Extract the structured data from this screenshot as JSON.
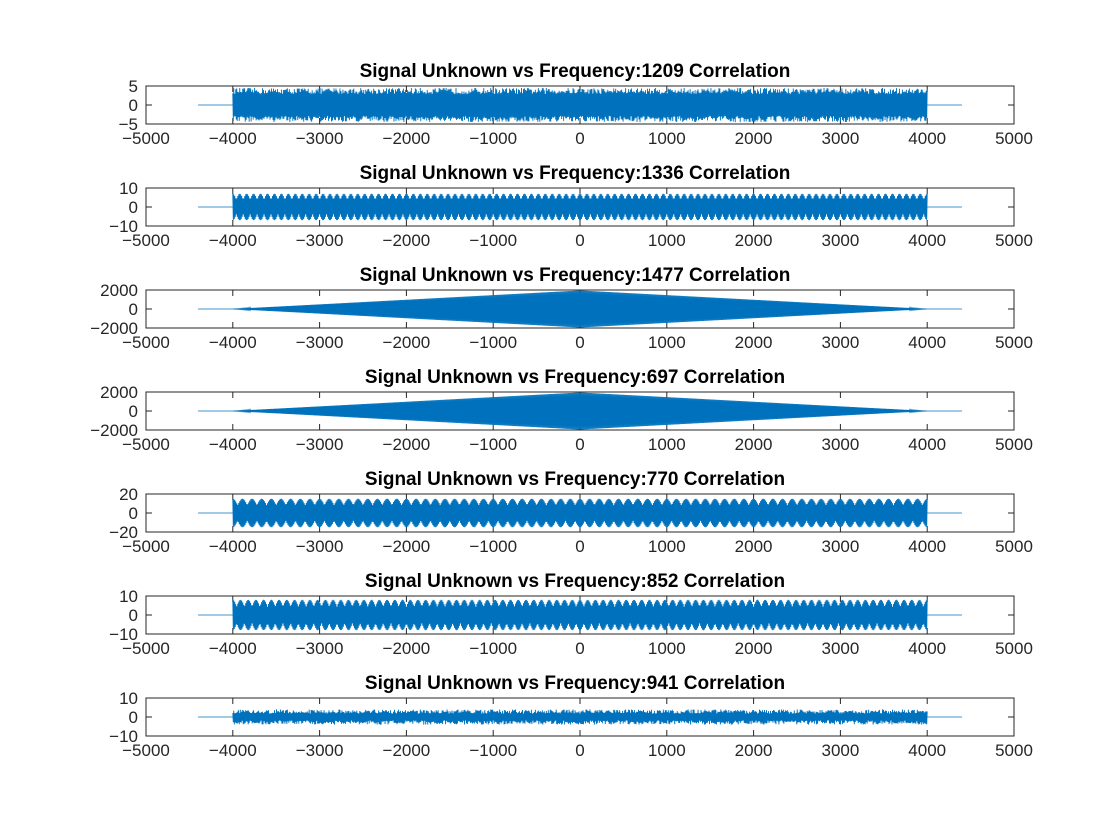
{
  "chart_data": [
    {
      "type": "line",
      "title": "Signal Unknown vs Frequency:1209 Correlation",
      "xlim": [
        -5000,
        5000
      ],
      "xticks": [
        -5000,
        -4000,
        -3000,
        -2000,
        -1000,
        0,
        1000,
        2000,
        3000,
        4000,
        5000
      ],
      "ylim": [
        -5,
        5
      ],
      "yticks": [
        5,
        0,
        -5
      ],
      "series": [
        {
          "color": "#0072BD",
          "envelope": "constant",
          "x_range": [
            -4400,
            4400
          ],
          "signal_range": [
            -4000,
            4000
          ],
          "amplitude": 4.5,
          "beats": 0
        }
      ]
    },
    {
      "type": "line",
      "title": "Signal Unknown vs Frequency:1336 Correlation",
      "xlim": [
        -5000,
        5000
      ],
      "xticks": [
        -5000,
        -4000,
        -3000,
        -2000,
        -1000,
        0,
        1000,
        2000,
        3000,
        4000,
        5000
      ],
      "ylim": [
        -10,
        10
      ],
      "yticks": [
        10,
        0,
        -10
      ],
      "series": [
        {
          "color": "#0072BD",
          "envelope": "beating",
          "x_range": [
            -4400,
            4400
          ],
          "signal_range": [
            -4000,
            4000
          ],
          "amplitude": 7,
          "beats": 100
        }
      ]
    },
    {
      "type": "line",
      "title": "Signal Unknown vs Frequency:1477 Correlation",
      "xlim": [
        -5000,
        5000
      ],
      "xticks": [
        -5000,
        -4000,
        -3000,
        -2000,
        -1000,
        0,
        1000,
        2000,
        3000,
        4000,
        5000
      ],
      "ylim": [
        -2000,
        2000
      ],
      "yticks": [
        2000,
        0,
        -2000
      ],
      "series": [
        {
          "color": "#0072BD",
          "envelope": "triangle",
          "x_range": [
            -4400,
            4400
          ],
          "signal_range": [
            -4000,
            4000
          ],
          "amplitude": 1950,
          "beats": 0
        }
      ]
    },
    {
      "type": "line",
      "title": "Signal Unknown vs Frequency:697 Correlation",
      "xlim": [
        -5000,
        5000
      ],
      "xticks": [
        -5000,
        -4000,
        -3000,
        -2000,
        -1000,
        0,
        1000,
        2000,
        3000,
        4000,
        5000
      ],
      "ylim": [
        -2000,
        2000
      ],
      "yticks": [
        2000,
        0,
        -2000
      ],
      "series": [
        {
          "color": "#0072BD",
          "envelope": "triangle",
          "x_range": [
            -4400,
            4400
          ],
          "signal_range": [
            -4000,
            4000
          ],
          "amplitude": 1950,
          "beats": 0
        }
      ]
    },
    {
      "type": "line",
      "title": "Signal Unknown vs Frequency:770 Correlation",
      "xlim": [
        -5000,
        5000
      ],
      "xticks": [
        -5000,
        -4000,
        -3000,
        -2000,
        -1000,
        0,
        1000,
        2000,
        3000,
        4000,
        5000
      ],
      "ylim": [
        -20,
        20
      ],
      "yticks": [
        20,
        0,
        -20
      ],
      "series": [
        {
          "color": "#0072BD",
          "envelope": "beating",
          "x_range": [
            -4400,
            4400
          ],
          "signal_range": [
            -4000,
            4000
          ],
          "amplitude": 15,
          "beats": 72
        }
      ]
    },
    {
      "type": "line",
      "title": "Signal Unknown vs Frequency:852 Correlation",
      "xlim": [
        -5000,
        5000
      ],
      "xticks": [
        -5000,
        -4000,
        -3000,
        -2000,
        -1000,
        0,
        1000,
        2000,
        3000,
        4000,
        5000
      ],
      "ylim": [
        -10,
        10
      ],
      "yticks": [
        10,
        0,
        -10
      ],
      "series": [
        {
          "color": "#0072BD",
          "envelope": "beating",
          "x_range": [
            -4400,
            4400
          ],
          "signal_range": [
            -4000,
            4000
          ],
          "amplitude": 8,
          "beats": 90
        }
      ]
    },
    {
      "type": "line",
      "title": "Signal Unknown vs Frequency:941 Correlation",
      "xlim": [
        -5000,
        5000
      ],
      "xticks": [
        -5000,
        -4000,
        -3000,
        -2000,
        -1000,
        0,
        1000,
        2000,
        3000,
        4000,
        5000
      ],
      "ylim": [
        -10,
        10
      ],
      "yticks": [
        10,
        0,
        -10
      ],
      "series": [
        {
          "color": "#0072BD",
          "envelope": "noisy",
          "x_range": [
            -4400,
            4400
          ],
          "signal_range": [
            -4000,
            4000
          ],
          "amplitude": 4,
          "beats": 0
        }
      ]
    }
  ]
}
